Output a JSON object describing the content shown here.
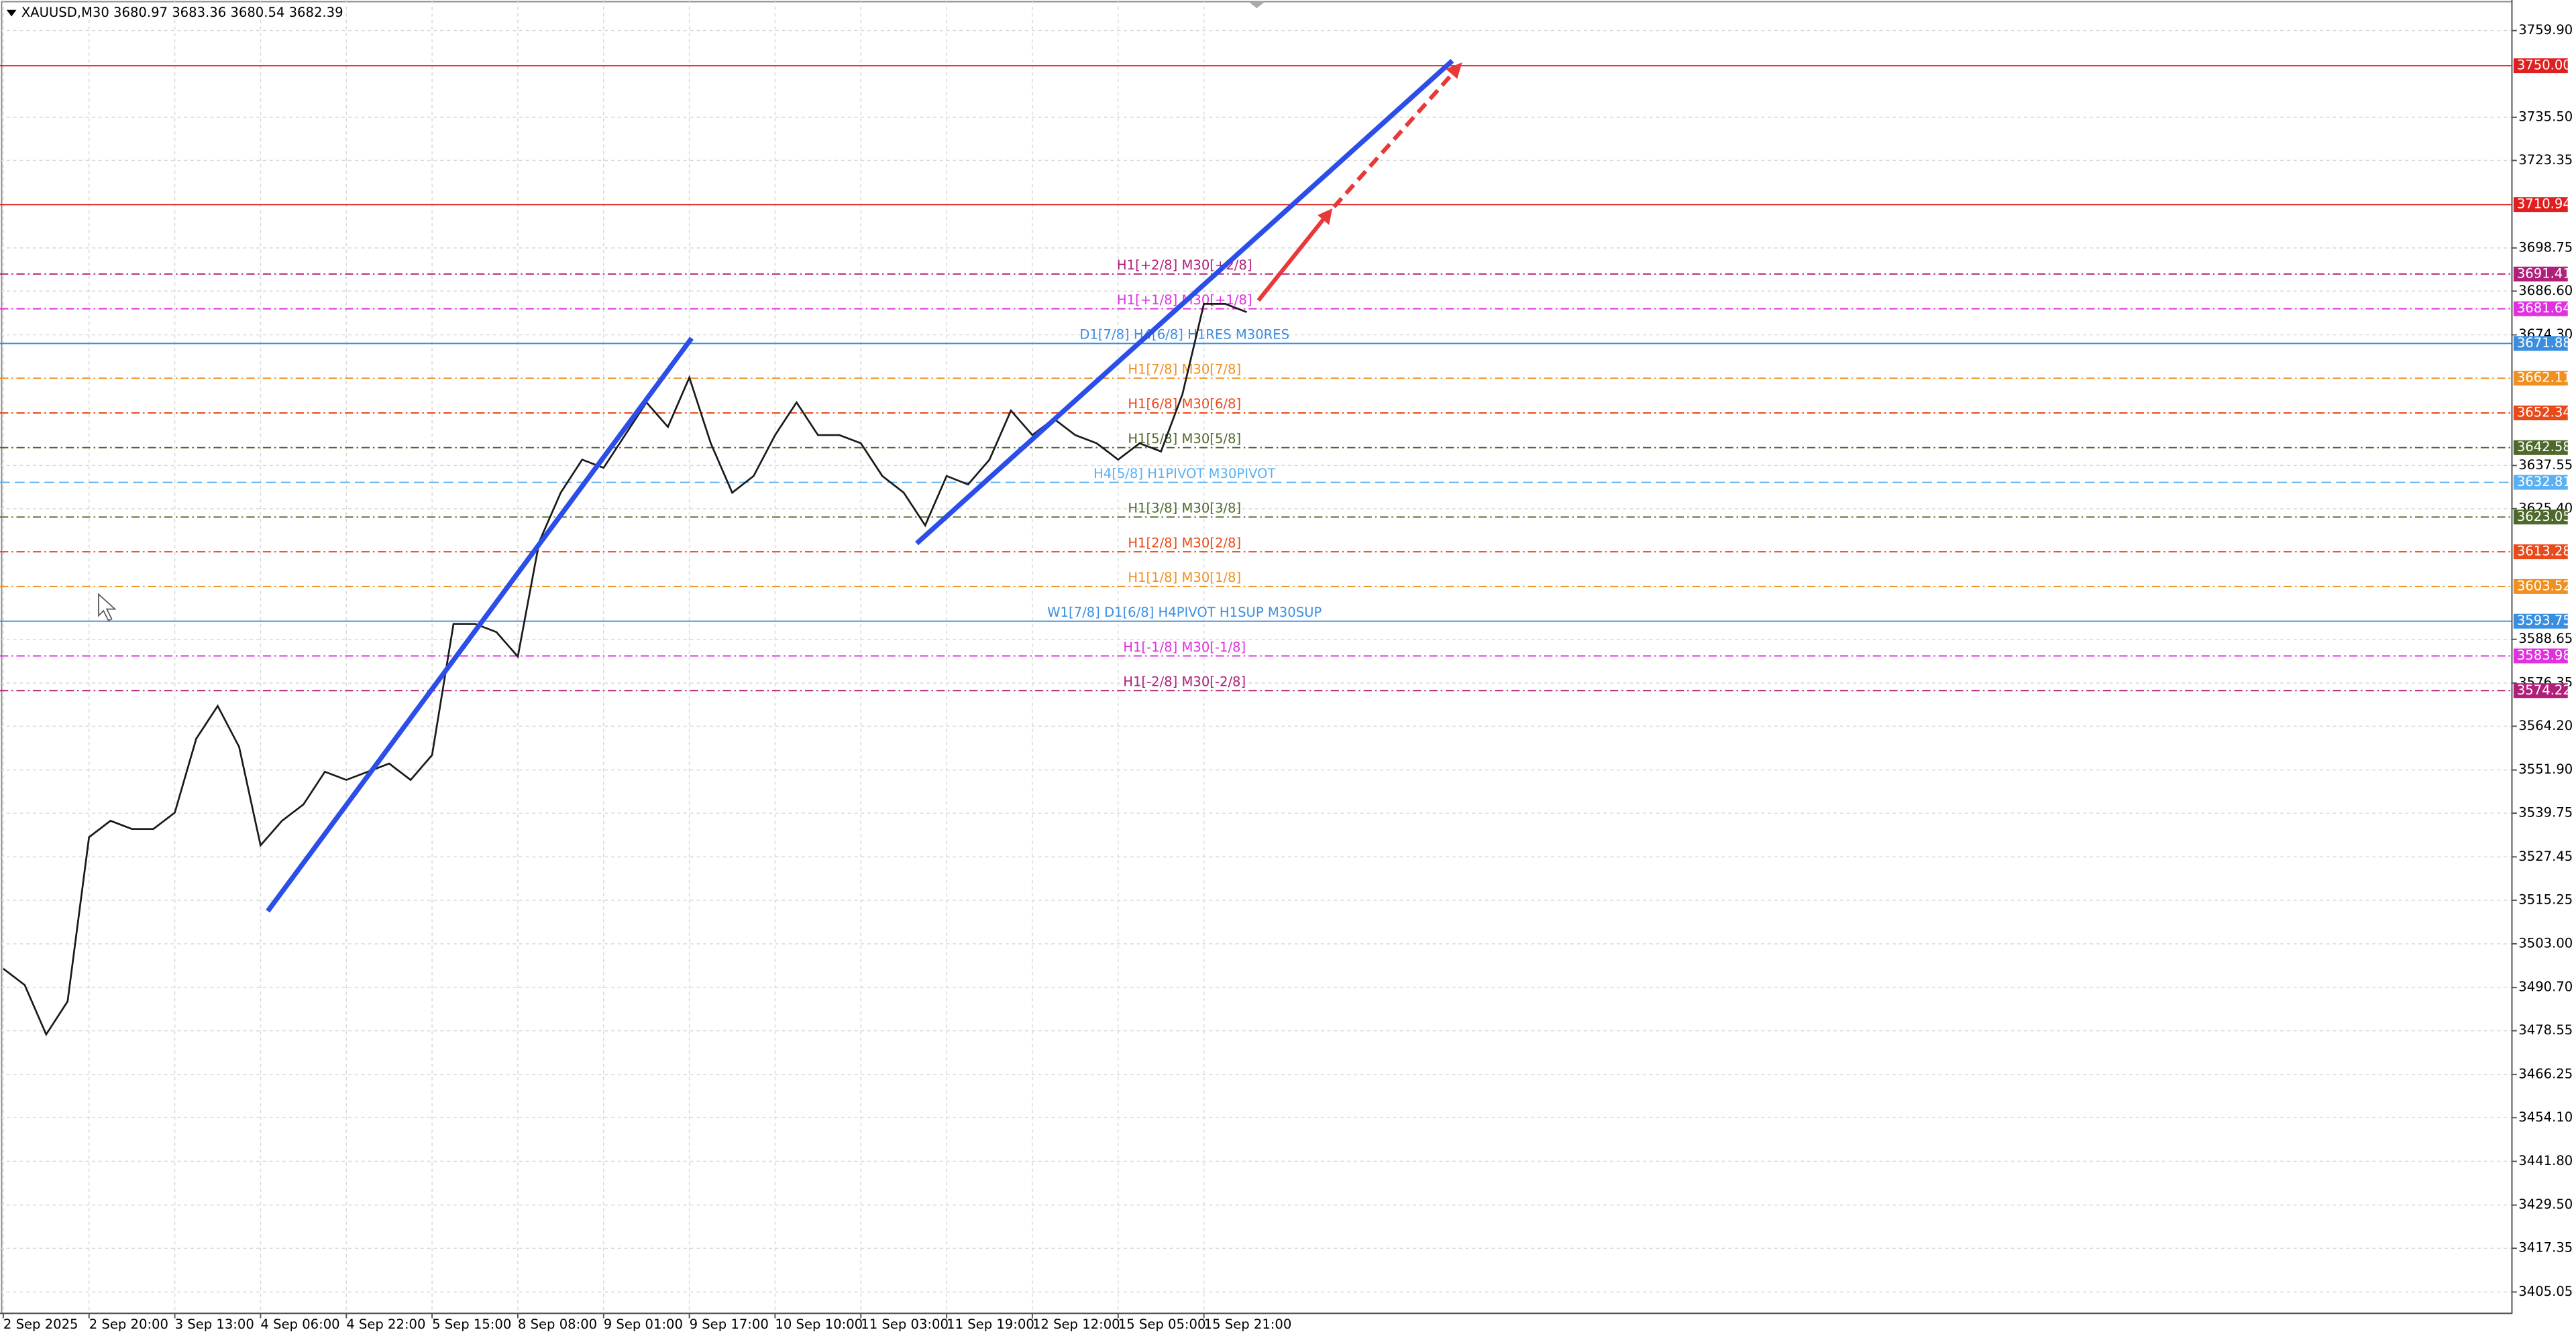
{
  "chart_data": {
    "type": "line",
    "title": "XAUUSD,M30  3680.97 3683.36 3680.54 3682.39",
    "color": "#1a1a1a",
    "categories": [
      "2 Sep 2025",
      null,
      null,
      null,
      "2 Sep 20:00",
      null,
      null,
      null,
      "3 Sep 13:00",
      null,
      null,
      null,
      "4 Sep 06:00",
      null,
      null,
      null,
      "4 Sep 22:00",
      null,
      null,
      null,
      "5 Sep 15:00",
      null,
      null,
      null,
      "8 Sep 08:00",
      null,
      null,
      null,
      "9 Sep 01:00",
      null,
      null,
      null,
      "9 Sep 17:00",
      null,
      null,
      null,
      "10 Sep 10:00",
      null,
      null,
      null,
      "11 Sep 03:00",
      null,
      null,
      null,
      "11 Sep 19:00",
      null,
      null,
      null,
      "12 Sep 12:00",
      null,
      null,
      null,
      "15 Sep 05:00",
      null,
      null,
      null,
      "15 Sep 21:00",
      null,
      null
    ],
    "values": [
      3496.0,
      3491.4,
      3477.5,
      3486.8,
      3533.0,
      3537.6,
      3535.3,
      3535.3,
      3539.9,
      3560.7,
      3569.9,
      3558.4,
      3530.7,
      3537.6,
      3542.2,
      3551.4,
      3549.1,
      3551.4,
      3553.7,
      3549.1,
      3556.1,
      3593.0,
      3593.0,
      3590.7,
      3583.8,
      3616.1,
      3629.9,
      3639.2,
      3636.9,
      3646.1,
      3655.3,
      3648.4,
      3662.3,
      3643.8,
      3629.9,
      3634.6,
      3646.1,
      3655.3,
      3646.1,
      3646.1,
      3643.8,
      3634.6,
      3629.9,
      3620.7,
      3634.6,
      3632.2,
      3639.2,
      3653.0,
      3646.1,
      3650.7,
      3646.1,
      3643.8,
      3639.2,
      3643.8,
      3641.5,
      3657.6,
      3683.0,
      3683.0,
      3680.7
    ],
    "ylim": [
      3399.05,
      3767.1
    ],
    "yticks": [
      {
        "value": 3759.9,
        "label": "3759.90"
      },
      {
        "value": 3735.5,
        "label": "3735.50"
      },
      {
        "value": 3723.35,
        "label": "3723.35"
      },
      {
        "value": 3698.75,
        "label": "3698.75"
      },
      {
        "value": 3686.6,
        "label": "3686.60"
      },
      {
        "value": 3674.3,
        "label": "3674.30"
      },
      {
        "value": 3637.55,
        "label": "3637.55"
      },
      {
        "value": 3625.4,
        "label": "3625.40"
      },
      {
        "value": 3588.65,
        "label": "3588.65"
      },
      {
        "value": 3576.35,
        "label": "3576.35"
      },
      {
        "value": 3564.2,
        "label": "3564.20"
      },
      {
        "value": 3551.9,
        "label": "3551.90"
      },
      {
        "value": 3539.75,
        "label": "3539.75"
      },
      {
        "value": 3527.45,
        "label": "3527.45"
      },
      {
        "value": 3515.25,
        "label": "3515.25"
      },
      {
        "value": 3503,
        "label": "3503.00"
      },
      {
        "value": 3490.7,
        "label": "3490.70"
      },
      {
        "value": 3478.55,
        "label": "3478.55"
      },
      {
        "value": 3466.25,
        "label": "3466.25"
      },
      {
        "value": 3454.1,
        "label": "3454.10"
      },
      {
        "value": 3441.8,
        "label": "3441.80"
      },
      {
        "value": 3429.5,
        "label": "3429.50"
      },
      {
        "value": 3417.35,
        "label": "3417.35"
      },
      {
        "value": 3405.05,
        "label": "3405.05"
      }
    ],
    "grid": true,
    "levels": [
      {
        "value": 3750,
        "value_label": "3750.00",
        "color": "#e02020",
        "style": "solid"
      },
      {
        "value": 3710.94,
        "value_label": "3710.94",
        "color": "#e02020",
        "style": "solid"
      },
      {
        "value": 3691.41,
        "value_label": "3691.41",
        "color": "#b0207a",
        "style": "dashdot",
        "text": "H1[+2/8] M30[+2/8]"
      },
      {
        "value": 3681.64,
        "value_label": "3681.64",
        "color": "#e030e0",
        "style": "dashdot",
        "text": "H1[+1/8] M30[+1/8]"
      },
      {
        "value": 3671.88,
        "value_label": "3671.88",
        "color": "#3a8ee0",
        "style": "solid",
        "text": "D1[7/8] H4[6/8] H1RES M30RES"
      },
      {
        "value": 3662.11,
        "value_label": "3662.11",
        "color": "#f09020",
        "style": "dashdot",
        "text": "H1[7/8] M30[7/8]"
      },
      {
        "value": 3652.34,
        "value_label": "3652.34",
        "color": "#e84a1a",
        "style": "dashdot",
        "text": "H1[6/8] M30[6/8]"
      },
      {
        "value": 3642.58,
        "value_label": "3642.58",
        "color": "#4e6a2a",
        "style": "dashdot",
        "text": "H1[5/8] M30[5/8]"
      },
      {
        "value": 3632.81,
        "value_label": "3632.81",
        "color": "#5ab0f0",
        "style": "dashed",
        "text": "H4[5/8] H1PIVOT M30PIVOT"
      },
      {
        "value": 3623.05,
        "value_label": "3623.05",
        "color": "#4e6a2a",
        "style": "dashdot",
        "text": "H1[3/8] M30[3/8]"
      },
      {
        "value": 3613.28,
        "value_label": "3613.28",
        "color": "#e84a1a",
        "style": "dashdot",
        "text": "H1[2/8] M30[2/8]"
      },
      {
        "value": 3603.52,
        "value_label": "3603.52",
        "color": "#f09020",
        "style": "dashdot",
        "text": "H1[1/8] M30[1/8]"
      },
      {
        "value": 3593.75,
        "value_label": "3593.75",
        "color": "#3a8ee0",
        "style": "solid",
        "text": "W1[7/8] D1[6/8] H4PIVOT H1SUP M30SUP"
      },
      {
        "value": 3583.98,
        "value_label": "3583.98",
        "color": "#e030e0",
        "style": "dashdot",
        "text": "H1[-1/8] M30[-1/8]"
      },
      {
        "value": 3574.22,
        "value_label": "3574.22",
        "color": "#b0207a",
        "style": "dashdot",
        "text": "H1[-2/8] M30[-2/8]"
      }
    ]
  }
}
